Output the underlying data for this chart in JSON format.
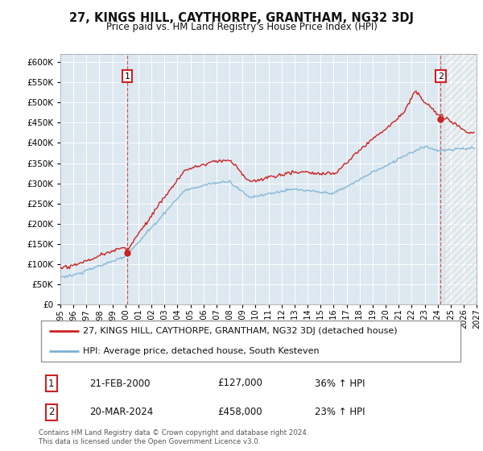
{
  "title": "27, KINGS HILL, CAYTHORPE, GRANTHAM, NG32 3DJ",
  "subtitle": "Price paid vs. HM Land Registry's House Price Index (HPI)",
  "legend_line1": "27, KINGS HILL, CAYTHORPE, GRANTHAM, NG32 3DJ (detached house)",
  "legend_line2": "HPI: Average price, detached house, South Kesteven",
  "annotation1_date": "21-FEB-2000",
  "annotation1_price": "£127,000",
  "annotation1_hpi": "36% ↑ HPI",
  "annotation2_date": "20-MAR-2024",
  "annotation2_price": "£458,000",
  "annotation2_hpi": "23% ↑ HPI",
  "footer": "Contains HM Land Registry data © Crown copyright and database right 2024.\nThis data is licensed under the Open Government Licence v3.0.",
  "sale1_year": 2000.13,
  "sale1_value": 127000,
  "sale2_year": 2024.22,
  "sale2_value": 458000,
  "hpi_color": "#7ab3d4",
  "price_color": "#cc2222",
  "bg_chart": "#dde8f0",
  "grid_color": "#ffffff",
  "ylim_min": 0,
  "ylim_max": 620000,
  "xlim_min": 1995,
  "xlim_max": 2027,
  "hatch_start": 2024.5
}
